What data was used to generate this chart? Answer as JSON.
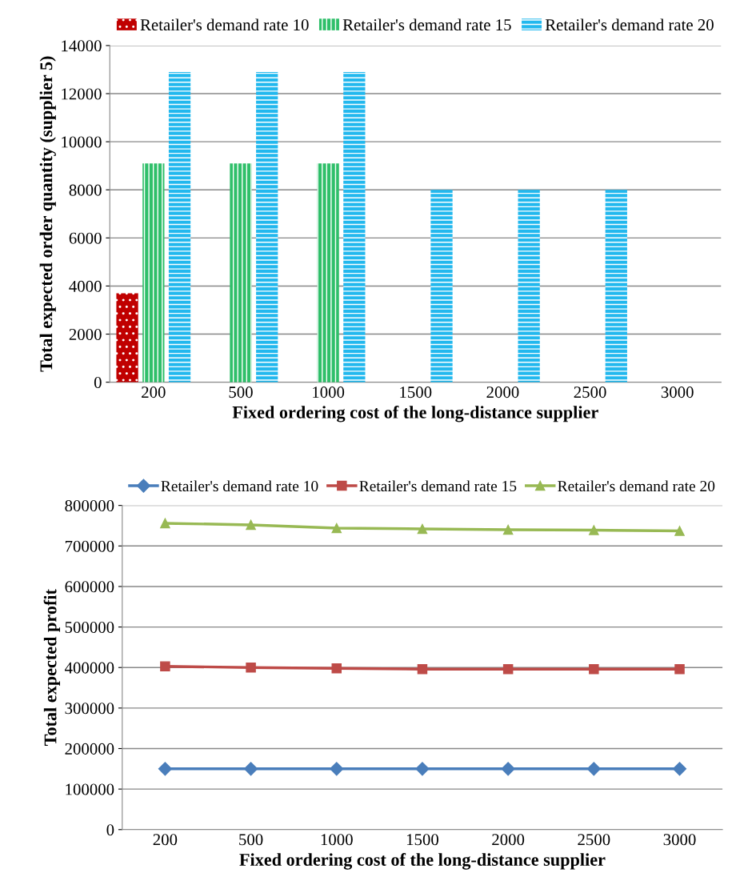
{
  "chart_data": [
    {
      "type": "bar",
      "xlabel": "Fixed ordering cost of the long-distance supplier",
      "ylabel": "Total expected order quantity (supplier 5)",
      "categories": [
        "200",
        "500",
        "1000",
        "1500",
        "2000",
        "2500",
        "3000"
      ],
      "series": [
        {
          "name": "Retailer's demand rate 10",
          "color": "#c00000",
          "values": [
            3700,
            0,
            0,
            0,
            0,
            0,
            0
          ]
        },
        {
          "name": "Retailer's demand rate 15",
          "color": "#2fbf6a",
          "values": [
            9100,
            9100,
            9100,
            0,
            0,
            0,
            0
          ]
        },
        {
          "name": "Retailer's demand rate 20",
          "color": "#22b8ee",
          "values": [
            12900,
            12900,
            12900,
            8000,
            8000,
            8000,
            0
          ]
        }
      ],
      "ylim": [
        0,
        14000
      ],
      "yticks": [
        0,
        2000,
        4000,
        6000,
        8000,
        10000,
        12000,
        14000
      ],
      "grid": "y",
      "legend": "top"
    },
    {
      "type": "line",
      "xlabel": "Fixed ordering cost of the long-distance supplier",
      "ylabel": "Total expected profit",
      "categories": [
        "200",
        "500",
        "1000",
        "1500",
        "2000",
        "2500",
        "3000"
      ],
      "series": [
        {
          "name": "Retailer's demand rate 10",
          "color": "#4a7ebb",
          "marker": "diamond",
          "values": [
            150000,
            150000,
            150000,
            150000,
            150000,
            150000,
            150000
          ]
        },
        {
          "name": "Retailer's demand rate 15",
          "color": "#be4b48",
          "marker": "square",
          "values": [
            403000,
            400000,
            398000,
            396000,
            396000,
            396000,
            396000
          ]
        },
        {
          "name": "Retailer's demand rate 20",
          "color": "#98b954",
          "marker": "triangle",
          "values": [
            756000,
            752000,
            744000,
            742000,
            740000,
            739000,
            737000
          ]
        }
      ],
      "ylim": [
        0,
        800000
      ],
      "yticks": [
        0,
        100000,
        200000,
        300000,
        400000,
        500000,
        600000,
        700000,
        800000
      ],
      "grid": "y",
      "legend": "top",
      "line_style": "solid"
    }
  ]
}
